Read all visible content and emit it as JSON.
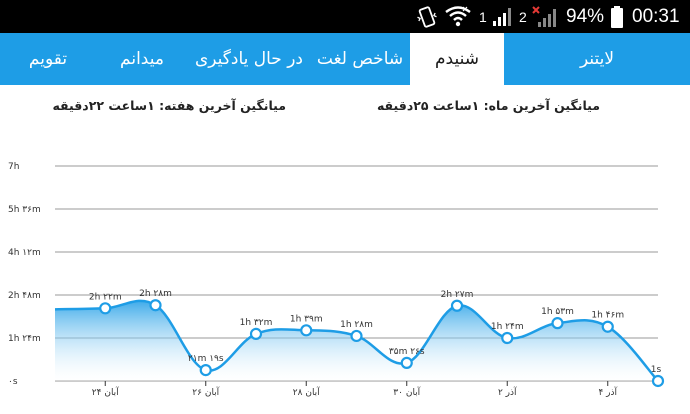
{
  "status_bar": {
    "sim1": "1",
    "sim2": "2",
    "battery": "94%",
    "time": "00:31",
    "icons": [
      "vibrate-icon",
      "wifi-icon",
      "signal-icon",
      "battery-icon"
    ]
  },
  "tabs": [
    {
      "label": "تقویم"
    },
    {
      "label": "میدانم"
    },
    {
      "label": "در حال یادگیری"
    },
    {
      "label": "شاخص لغت"
    },
    {
      "label": "شنیدم"
    },
    {
      "label": "لایتنر"
    }
  ],
  "active_tab": 4,
  "averages": {
    "week": "میانگین آخرین هفته: ۱ساعت ۲۲دقیقه",
    "month": "میانگین آخرین ماه: ۱ساعت ۲۵دقیقه"
  },
  "colors": {
    "tabbar": "#1e9de6",
    "line": "#1e9de6",
    "grid": "#9a9a9a"
  },
  "chart_data": {
    "type": "area",
    "smooth": true,
    "y_unit": "minutes",
    "ylim": [
      0,
      420
    ],
    "y_ticks": [
      {
        "value": 0,
        "label": "۰s"
      },
      {
        "value": 84,
        "label": "1h ۲۴m"
      },
      {
        "value": 168,
        "label": "2h ۴۸m"
      },
      {
        "value": 252,
        "label": "4h ۱۲m"
      },
      {
        "value": 336,
        "label": "5h ۳۶m"
      },
      {
        "value": 420,
        "label": "7h"
      }
    ],
    "x_ticks": [
      {
        "index": 1,
        "label": "۲۴ آبان"
      },
      {
        "index": 3,
        "label": "۲۶ آبان"
      },
      {
        "index": 5,
        "label": "۲۸ آبان"
      },
      {
        "index": 7,
        "label": "۳۰ آبان"
      },
      {
        "index": 9,
        "label": "۲ آذر"
      },
      {
        "index": 11,
        "label": "۴ آذر"
      }
    ],
    "series": [
      {
        "values": [
          140,
          142,
          148,
          21.3,
          92,
          99,
          88,
          35.4,
          147,
          84,
          113,
          106,
          0.02
        ],
        "show_marker": [
          false,
          true,
          true,
          true,
          true,
          true,
          true,
          true,
          true,
          true,
          true,
          true,
          true
        ],
        "labels": [
          "",
          "2h ۲۲m",
          "2h ۲۸m",
          "۲۱m ۱۹s",
          "1h ۳۲m",
          "1h ۳۹m",
          "1h ۲۸m",
          "۳۵m ۲۶s",
          "2h ۲۷m",
          "1h ۲۴m",
          "1h ۵۳m",
          "1h ۴۶m",
          "1s"
        ]
      }
    ]
  }
}
